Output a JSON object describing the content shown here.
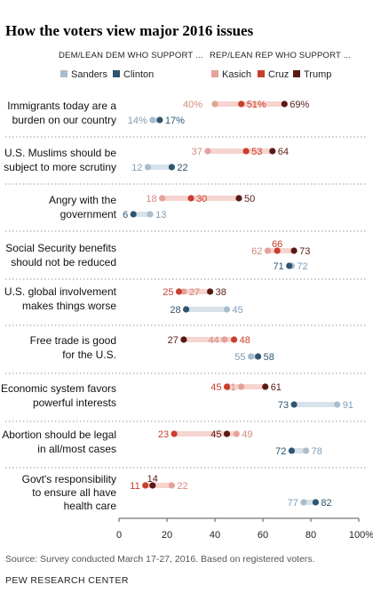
{
  "title": "How the voters view major 2016 issues",
  "dem_header": "DEM/LEAN DEM WHO SUPPORT ...",
  "rep_header": "REP/LEAN REP WHO SUPPORT ...",
  "colors": {
    "sanders": "#aabdcd",
    "clinton": "#2f5570",
    "kasich": "#e5a29a",
    "cruz": "#c8402d",
    "trump": "#5a1a14",
    "dem_connector": "#d7e2ea",
    "rep_connector": "#f6d4cf",
    "sanders_text": "#7f9db5",
    "clinton_text": "#2f5570",
    "kasich_text": "#d4897f",
    "cruz_text": "#c8402d",
    "trump_text": "#5a1a14"
  },
  "chart_data": {
    "type": "scatter",
    "xlim": [
      0,
      100
    ],
    "x_ticks": [
      "0",
      "20",
      "40",
      "60",
      "80",
      "100%"
    ],
    "series": [
      {
        "name": "Sanders",
        "party": "dem"
      },
      {
        "name": "Clinton",
        "party": "dem"
      },
      {
        "name": "Kasich",
        "party": "rep"
      },
      {
        "name": "Cruz",
        "party": "rep"
      },
      {
        "name": "Trump",
        "party": "rep"
      }
    ],
    "rows": [
      {
        "label": [
          "Immigrants today are a",
          "burden on our country"
        ],
        "Sanders": 14,
        "Clinton": 17,
        "Kasich": 40,
        "Cruz": 51,
        "Trump": 69,
        "pct_first": true
      },
      {
        "label": [
          "U.S. Muslims should be",
          "subject to more scrutiny"
        ],
        "Sanders": 12,
        "Clinton": 22,
        "Kasich": 37,
        "Cruz": 53,
        "Trump": 64
      },
      {
        "label": [
          "Angry with the",
          "government"
        ],
        "Sanders": 13,
        "Clinton": 6,
        "Kasich": 18,
        "Cruz": 30,
        "Trump": 50
      },
      {
        "label": [
          "Social Security benefits",
          "should not be reduced"
        ],
        "Sanders": 72,
        "Clinton": 71,
        "Kasich": 62,
        "Cruz": 66,
        "Trump": 73
      },
      {
        "label": [
          "U.S. global involvement",
          "makes things worse"
        ],
        "Sanders": 45,
        "Clinton": 28,
        "Kasich": 27,
        "Cruz": 25,
        "Trump": 38
      },
      {
        "label": [
          "Free trade is good",
          "for the U.S."
        ],
        "Sanders": 55,
        "Clinton": 58,
        "Kasich": 44,
        "Cruz": 48,
        "Trump": 27
      },
      {
        "label": [
          "Economic system favors",
          "powerful interests"
        ],
        "Sanders": 91,
        "Clinton": 73,
        "Kasich": 51,
        "Cruz": 45,
        "Trump": 61
      },
      {
        "label": [
          "Abortion should be legal",
          "in all/most cases"
        ],
        "Sanders": 78,
        "Clinton": 72,
        "Kasich": 49,
        "Cruz": 23,
        "Trump": 45
      },
      {
        "label": [
          "Govt's responsibility",
          "to ensure all have",
          "health care"
        ],
        "Sanders": 77,
        "Clinton": 82,
        "Kasich": 22,
        "Cruz": 11,
        "Trump": 14
      }
    ]
  },
  "footer": {
    "source": "Source: Survey conducted March 17-27, 2016. Based on registered voters.",
    "brand": "PEW RESEARCH CENTER"
  }
}
